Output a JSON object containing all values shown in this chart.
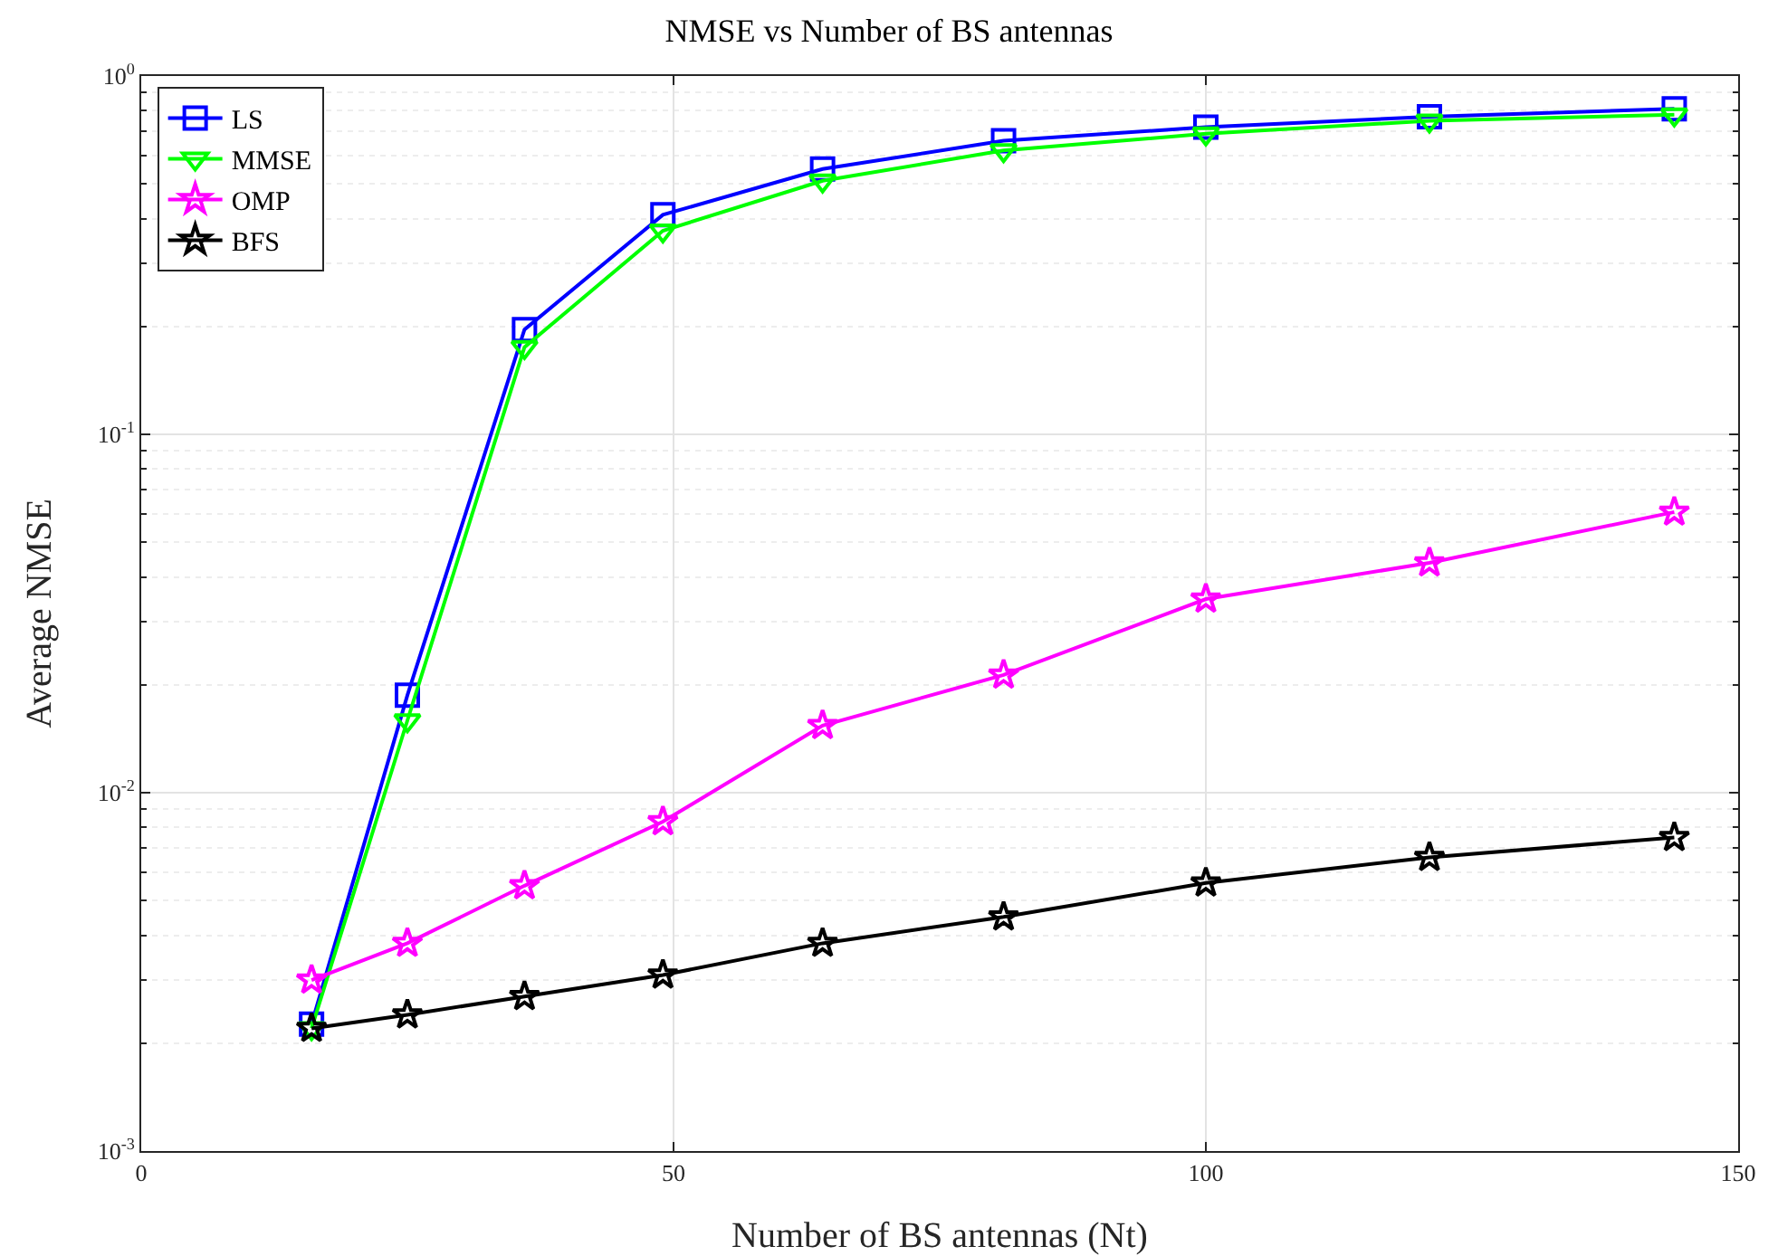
{
  "chart_data": {
    "type": "line",
    "title": "NMSE vs Number of BS antennas",
    "xlabel": "Number of BS antennas (Nt)",
    "ylabel": "Average NMSE",
    "x": [
      16,
      25,
      36,
      49,
      64,
      81,
      100,
      121,
      144
    ],
    "series": [
      {
        "name": "LS",
        "color": "#0000ff",
        "marker": "square",
        "values": [
          0.00226,
          0.0187,
          0.196,
          0.41,
          0.55,
          0.66,
          0.72,
          0.77,
          0.81
        ]
      },
      {
        "name": "MMSE",
        "color": "#00ff00",
        "marker": "triangle",
        "values": [
          0.0022,
          0.0159,
          0.175,
          0.37,
          0.51,
          0.62,
          0.69,
          0.75,
          0.78
        ]
      },
      {
        "name": "OMP",
        "color": "#ff00ff",
        "marker": "star",
        "values": [
          0.003,
          0.0038,
          0.0055,
          0.0083,
          0.0154,
          0.0213,
          0.0347,
          0.0438,
          0.0607
        ]
      },
      {
        "name": "BFS",
        "color": "#000000",
        "marker": "star",
        "values": [
          0.0022,
          0.0024,
          0.0027,
          0.0031,
          0.0038,
          0.0045,
          0.0056,
          0.0066,
          0.0075
        ]
      }
    ],
    "xlim": [
      0,
      150
    ],
    "xticks": [
      0,
      50,
      100,
      150
    ],
    "ylim": [
      0.001,
      1
    ],
    "yticks": [
      {
        "value": 0.001,
        "label": "10$^{-3}$"
      },
      {
        "value": 0.01,
        "label": "10$^{-2}$"
      },
      {
        "value": 0.1,
        "label": "10$^{-1}$"
      },
      {
        "value": 1,
        "label": "10$^{0}$"
      }
    ],
    "log": "y",
    "grid": true,
    "legend": "top left",
    "line_style": "solid"
  }
}
